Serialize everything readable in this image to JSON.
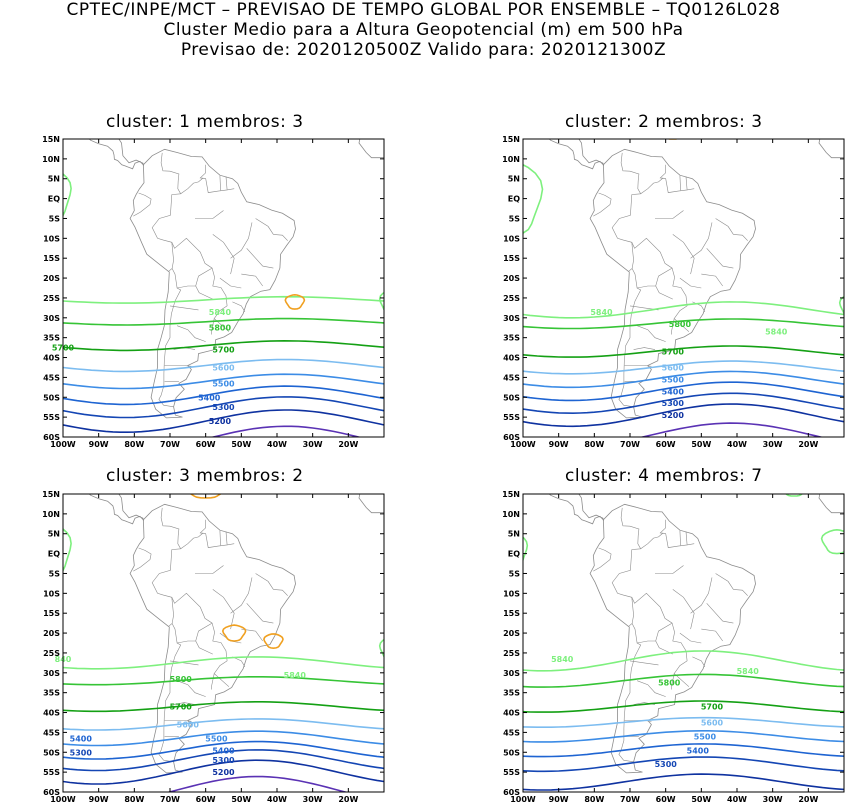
{
  "header": {
    "line1": "CPTEC/INPE/MCT – PREVISAO DE TEMPO GLOBAL POR ENSEMBLE – TQ0126L028",
    "line2": "Cluster Medio para a Altura Geopotencial (m) em 500 hPa",
    "line3": "Previsao de: 2020120500Z    Valido para: 2020121300Z"
  },
  "axes": {
    "lat_labels": [
      "15N",
      "10N",
      "5N",
      "EQ",
      "5S",
      "10S",
      "15S",
      "20S",
      "25S",
      "30S",
      "35S",
      "40S",
      "45S",
      "50S",
      "55S",
      "60S"
    ],
    "lon_labels": [
      "100W",
      "90W",
      "80W",
      "70W",
      "60W",
      "50W",
      "40W",
      "30W",
      "20W"
    ]
  },
  "contour_colors": {
    "5840": "#7ef07e",
    "5800": "#36c436",
    "5700": "#14a014",
    "5600": "#7cbcf0",
    "5500": "#3c8ce6",
    "5400": "#1e64d2",
    "5300": "#1446b4",
    "5200": "#0f32a0",
    "5100": "#5a32b4",
    "high": "#f0a020",
    "coast": "#8c8c8c"
  },
  "panels": [
    {
      "title": "cluster:  1   membros:  3",
      "labels": [
        {
          "text": "5840",
          "lon": -56,
          "lat": -28.5
        },
        {
          "text": "5800",
          "lon": -56,
          "lat": -32.5
        },
        {
          "text": "5700",
          "lon": -100,
          "lat": -37.5
        },
        {
          "text": "5700",
          "lon": -55,
          "lat": -38
        },
        {
          "text": "5600",
          "lon": -55,
          "lat": -42.5
        },
        {
          "text": "5500",
          "lon": -55,
          "lat": -46.5
        },
        {
          "text": "5400",
          "lon": -59,
          "lat": -50
        },
        {
          "text": "5300",
          "lon": -55,
          "lat": -52.5
        },
        {
          "text": "5200",
          "lon": -56,
          "lat": -56
        }
      ]
    },
    {
      "title": "cluster:  2   membros:  3",
      "labels": [
        {
          "text": "5840",
          "lon": -78,
          "lat": -28.5
        },
        {
          "text": "5800",
          "lon": -56,
          "lat": -31.5
        },
        {
          "text": "5840",
          "lon": -29,
          "lat": -33.5
        },
        {
          "text": "5700",
          "lon": -58,
          "lat": -38.5
        },
        {
          "text": "5600",
          "lon": -58,
          "lat": -42.5
        },
        {
          "text": "5500",
          "lon": -58,
          "lat": -45.5
        },
        {
          "text": "5400",
          "lon": -58,
          "lat": -48.5
        },
        {
          "text": "5300",
          "lon": -58,
          "lat": -51.5
        },
        {
          "text": "5200",
          "lon": -58,
          "lat": -54.5
        }
      ]
    },
    {
      "title": "cluster:  3   membros:  2",
      "labels": [
        {
          "text": "840",
          "lon": -100,
          "lat": -26.5
        },
        {
          "text": "5840",
          "lon": -35,
          "lat": -30.5
        },
        {
          "text": "5800",
          "lon": -67,
          "lat": -31.5
        },
        {
          "text": "5700",
          "lon": -67,
          "lat": -38.5
        },
        {
          "text": "5600",
          "lon": -65,
          "lat": -43
        },
        {
          "text": "5400",
          "lon": -95,
          "lat": -46.5
        },
        {
          "text": "5500",
          "lon": -57,
          "lat": -46.5
        },
        {
          "text": "5300",
          "lon": -95,
          "lat": -50
        },
        {
          "text": "5400",
          "lon": -55,
          "lat": -49.5
        },
        {
          "text": "5300",
          "lon": -55,
          "lat": -52
        },
        {
          "text": "5200",
          "lon": -55,
          "lat": -55
        }
      ]
    },
    {
      "title": "cluster:  4   membros:  7",
      "labels": [
        {
          "text": "5840",
          "lon": -89,
          "lat": -26.5
        },
        {
          "text": "5840",
          "lon": -37,
          "lat": -29.5
        },
        {
          "text": "5800",
          "lon": -59,
          "lat": -32.5
        },
        {
          "text": "5700",
          "lon": -47,
          "lat": -38.5
        },
        {
          "text": "5600",
          "lon": -47,
          "lat": -42.5
        },
        {
          "text": "5500",
          "lon": -49,
          "lat": -46
        },
        {
          "text": "5400",
          "lon": -51,
          "lat": -49.5
        },
        {
          "text": "5300",
          "lon": -60,
          "lat": -53
        }
      ]
    }
  ]
}
